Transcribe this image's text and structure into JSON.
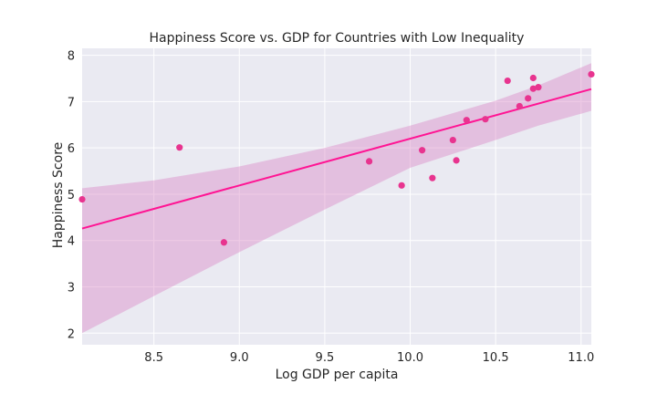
{
  "chart_data": {
    "type": "scatter",
    "title": "Happiness Score vs. GDP for Countries with Low Inequality",
    "xlabel": "Log GDP per capita",
    "ylabel": "Happiness Score",
    "xlim": [
      8.08,
      11.06
    ],
    "ylim": [
      1.75,
      8.15
    ],
    "xticks": [
      "8.5",
      "9.0",
      "9.5",
      "10.0",
      "10.5",
      "11.0"
    ],
    "yticks": [
      "2",
      "3",
      "4",
      "5",
      "6",
      "7",
      "8"
    ],
    "grid": true,
    "background": "#eaeaf2",
    "point_color": "#e8348f",
    "line_color": "#ff1493",
    "band_color": "#dc8cc8",
    "points": [
      {
        "x": 8.08,
        "y": 4.89
      },
      {
        "x": 8.65,
        "y": 6.01
      },
      {
        "x": 8.91,
        "y": 3.96
      },
      {
        "x": 9.76,
        "y": 5.71
      },
      {
        "x": 9.95,
        "y": 5.19
      },
      {
        "x": 10.07,
        "y": 5.95
      },
      {
        "x": 10.13,
        "y": 5.35
      },
      {
        "x": 10.25,
        "y": 6.17
      },
      {
        "x": 10.27,
        "y": 5.73
      },
      {
        "x": 10.33,
        "y": 6.6
      },
      {
        "x": 10.44,
        "y": 6.62
      },
      {
        "x": 10.57,
        "y": 7.45
      },
      {
        "x": 10.64,
        "y": 6.9
      },
      {
        "x": 10.69,
        "y": 7.07
      },
      {
        "x": 10.72,
        "y": 7.28
      },
      {
        "x": 10.72,
        "y": 7.51
      },
      {
        "x": 10.75,
        "y": 7.31
      },
      {
        "x": 11.06,
        "y": 7.59
      }
    ],
    "regression_line": {
      "x": [
        8.08,
        11.06
      ],
      "y": [
        4.26,
        7.27
      ]
    },
    "confidence_band": {
      "x": [
        8.08,
        8.5,
        9.0,
        9.5,
        10.0,
        10.5,
        10.75,
        11.06
      ],
      "upper": [
        5.13,
        5.3,
        5.6,
        6.0,
        6.48,
        7.02,
        7.35,
        7.83
      ],
      "lower": [
        2.0,
        2.8,
        3.75,
        4.67,
        5.57,
        6.17,
        6.48,
        6.8
      ]
    }
  }
}
